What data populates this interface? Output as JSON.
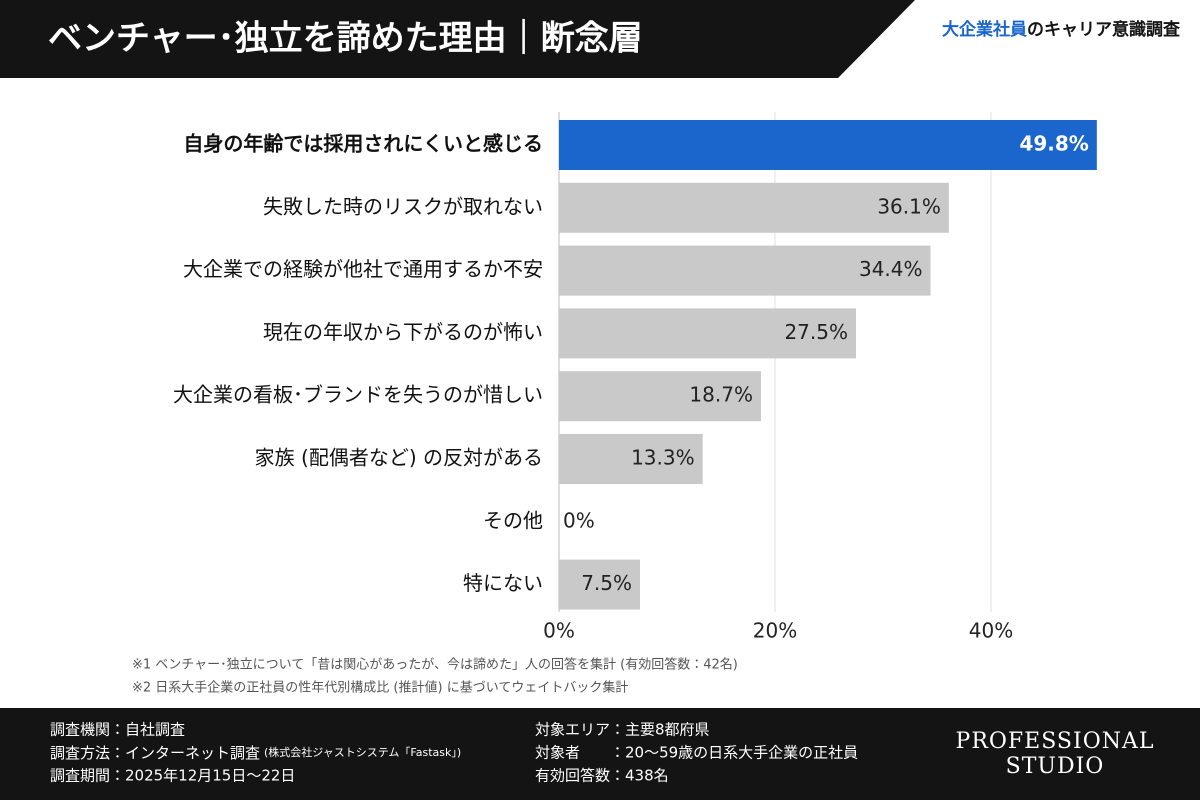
{
  "header": {
    "title": "ベンチャー･独立を諦めた理由｜断念層",
    "brand_highlight": "大企業社員",
    "brand_rest": "のキャリア意識調査"
  },
  "chart_data": {
    "type": "barh",
    "categories": [
      "自身の年齢では採用されにくいと感じる",
      "失敗した時のリスクが取れない",
      "大企業での経験が他社で通用するか不安",
      "現在の年収から下がるのが怖い",
      "大企業の看板･ブランドを失うのが惜しい",
      "家族 (配偶者など) の反対がある",
      "その他",
      "特にない"
    ],
    "values": [
      49.8,
      36.1,
      34.4,
      27.5,
      18.7,
      13.3,
      0,
      7.5
    ],
    "value_labels": [
      "49.8%",
      "36.1%",
      "34.4%",
      "27.5%",
      "18.7%",
      "13.3%",
      "0%",
      "7.5%"
    ],
    "colors": [
      "#1a66cc",
      "#c9c9c9",
      "#c9c9c9",
      "#c9c9c9",
      "#c9c9c9",
      "#c9c9c9",
      "#c9c9c9",
      "#c9c9c9"
    ],
    "xlim": [
      0,
      50
    ],
    "xticks": [
      {
        "value": 0,
        "label": "0%"
      },
      {
        "value": 20,
        "label": "20%"
      },
      {
        "value": 40,
        "label": "40%"
      }
    ],
    "grid": true
  },
  "notes": [
    "※1 ベンチャー･独立について「昔は関心があったが、今は諦めた」人の回答を集計 (有効回答数：42名)",
    "※2 日系大手企業の正社員の性年代別構成比 (推計値) に基づいてウェイトバック集計"
  ],
  "footer": {
    "left": [
      "調査機関：自社調査",
      "調査方法：インターネット調査",
      "調査期間：2025年12月15日〜22日"
    ],
    "method_note": "(株式会社ジャストシステム「Fastask」)",
    "right": [
      "対象エリア：主要8都府県",
      "対象者　　：20〜59歳の日系大手企業の正社員",
      "有効回答数：438名"
    ],
    "logo": [
      "PROFESSIONAL",
      "STUDIO"
    ]
  }
}
